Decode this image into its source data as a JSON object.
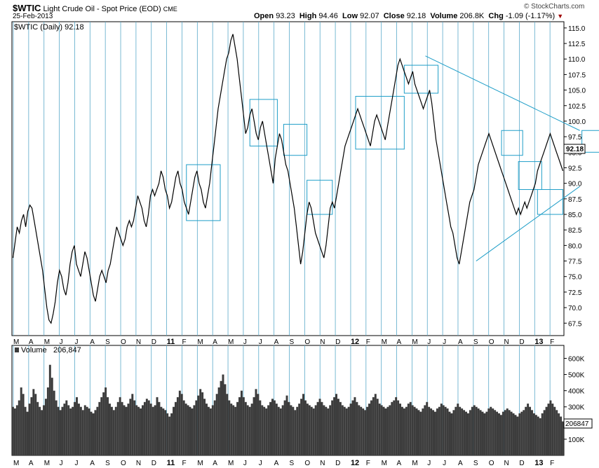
{
  "header": {
    "symbol": "$WTIC",
    "name": "Light Crude Oil - Spot Price (EOD)",
    "exchange": "CME",
    "date": "25-Feb-2013",
    "brand": "© StockCharts.com",
    "quote": {
      "open_label": "Open",
      "open": "93.23",
      "high_label": "High",
      "high": "94.46",
      "low_label": "Low",
      "low": "92.07",
      "close_label": "Close",
      "close": "92.18",
      "volume_label": "Volume",
      "volume": "206.8K",
      "chg_label": "Chg",
      "chg": "-1.09 (-1.17%)"
    }
  },
  "chart_data": [
    {
      "type": "line",
      "legend": "$WTIC (Daily) 92.18",
      "last_value_label": "92.18",
      "ylim": [
        65.5,
        116.0
      ],
      "y_ticks": [
        "115.0",
        "112.5",
        "110.0",
        "107.5",
        "105.0",
        "102.5",
        "100.0",
        "97.5",
        "95.0",
        "92.5",
        "90.0",
        "87.5",
        "85.0",
        "82.5",
        "80.0",
        "77.5",
        "75.0",
        "72.5",
        "70.0",
        "67.5"
      ],
      "x_month_labels": [
        "M",
        "A",
        "M",
        "J",
        "J",
        "A",
        "S",
        "O",
        "N",
        "D",
        "11",
        "F",
        "M",
        "A",
        "M",
        "J",
        "J",
        "A",
        "S",
        "O",
        "N",
        "D",
        "12",
        "F",
        "M",
        "A",
        "M",
        "J",
        "J",
        "A",
        "S",
        "O",
        "N",
        "D",
        "13",
        "F"
      ],
      "x_year_labels": [
        "11",
        "12",
        "13"
      ],
      "month_grid_color": "#5aa9c9",
      "price_color": "#000000",
      "annotation_color": "#1f9ec8",
      "series": [
        {
          "values": [
            78,
            80.5,
            83,
            82,
            84,
            85,
            83,
            85.5,
            86.5,
            86,
            84,
            82,
            80,
            78,
            76,
            73,
            70,
            68,
            67.5,
            69,
            71,
            74,
            76,
            75,
            73,
            72,
            74,
            77,
            79,
            80,
            77,
            76,
            75,
            77,
            79,
            78,
            76,
            74,
            72,
            71,
            73,
            75,
            76,
            75,
            74,
            76,
            77,
            79,
            81,
            83,
            82,
            81,
            80,
            81,
            83,
            84,
            83,
            84,
            86,
            88,
            87,
            86,
            84,
            83,
            85,
            88,
            89,
            88,
            89,
            90,
            92,
            91,
            89,
            88,
            86,
            87,
            89,
            91,
            92,
            90,
            89,
            87,
            86,
            85,
            87,
            89,
            91,
            92,
            90,
            89,
            87,
            86,
            88,
            90,
            93,
            96,
            99,
            102,
            104,
            106,
            108,
            110,
            111,
            113,
            114,
            112,
            110,
            107,
            104,
            101,
            98,
            99,
            101,
            102,
            100,
            98,
            97,
            99,
            100,
            98,
            96,
            94,
            92,
            90,
            94,
            96,
            98,
            97,
            95,
            93,
            92,
            90,
            88,
            86,
            83,
            80,
            77,
            79,
            82,
            85,
            87,
            86,
            84,
            82,
            81,
            80,
            79,
            78,
            80,
            83,
            86,
            87,
            86,
            88,
            90,
            92,
            94,
            96,
            97,
            98,
            99,
            100,
            101,
            102,
            101,
            100,
            99,
            98,
            97,
            96,
            98,
            100,
            101,
            100,
            99,
            98,
            97,
            99,
            101,
            103,
            105,
            107,
            109,
            110,
            109,
            108,
            107,
            106,
            107,
            108,
            106,
            105,
            104,
            103,
            102,
            103,
            104,
            105,
            103,
            100,
            97,
            95,
            93,
            91,
            89,
            87,
            85,
            83,
            82,
            80,
            78,
            77,
            79,
            81,
            83,
            85,
            87,
            88,
            89,
            91,
            93,
            94,
            95,
            96,
            97,
            98,
            97,
            96,
            95,
            94,
            93,
            92,
            91,
            90,
            89,
            88,
            87,
            86,
            85,
            86,
            85,
            86,
            87,
            86,
            87,
            88,
            89,
            90,
            92,
            93,
            94,
            95,
            96,
            97,
            98,
            97,
            96,
            95,
            94,
            93,
            92
          ]
        }
      ],
      "annotations": {
        "upper_trendline": [
          [
            195,
            110.5
          ],
          [
            268,
            98.5
          ]
        ],
        "lower_trendline": [
          [
            219,
            77.5
          ],
          [
            268,
            89.5
          ]
        ],
        "boxes": [
          {
            "x0": 82,
            "x1": 98,
            "y0": 84,
            "y1": 93
          },
          {
            "x0": 112,
            "x1": 125,
            "y0": 96,
            "y1": 103.5
          },
          {
            "x0": 128,
            "x1": 139,
            "y0": 94.5,
            "y1": 99.5
          },
          {
            "x0": 139,
            "x1": 151,
            "y0": 85,
            "y1": 90.5
          },
          {
            "x0": 162,
            "x1": 185,
            "y0": 95.5,
            "y1": 104
          },
          {
            "x0": 185,
            "x1": 201,
            "y0": 104.5,
            "y1": 109
          },
          {
            "x0": 231,
            "x1": 241,
            "y0": 94.5,
            "y1": 98.5
          },
          {
            "x0": 239,
            "x1": 250,
            "y0": 89,
            "y1": 93.5
          },
          {
            "x0": 248,
            "x1": 260,
            "y0": 85,
            "y1": 89
          },
          {
            "x0": 269,
            "x1": 281,
            "y0": 95,
            "y1": 98.5
          }
        ]
      }
    },
    {
      "type": "bar",
      "legend_label": "Volume",
      "legend_value": "206,847",
      "last_value_label": "206847",
      "ylim": [
        0,
        680000
      ],
      "y_ticks": [
        "600K",
        "500K",
        "400K",
        "300K",
        "200K",
        "100K"
      ],
      "bar_color": "#3c3c3c",
      "values": [
        300000,
        290000,
        310000,
        340000,
        420000,
        380000,
        300000,
        270000,
        320000,
        360000,
        410000,
        380000,
        330000,
        300000,
        280000,
        310000,
        350000,
        420000,
        560000,
        480000,
        400000,
        340000,
        300000,
        280000,
        300000,
        320000,
        340000,
        310000,
        290000,
        300000,
        330000,
        360000,
        320000,
        300000,
        280000,
        310000,
        300000,
        290000,
        270000,
        260000,
        280000,
        300000,
        330000,
        360000,
        390000,
        420000,
        360000,
        320000,
        300000,
        280000,
        300000,
        330000,
        360000,
        330000,
        310000,
        300000,
        320000,
        350000,
        380000,
        340000,
        310000,
        300000,
        290000,
        310000,
        330000,
        350000,
        340000,
        320000,
        300000,
        310000,
        360000,
        330000,
        300000,
        290000,
        280000,
        260000,
        240000,
        260000,
        300000,
        330000,
        360000,
        400000,
        380000,
        340000,
        320000,
        310000,
        300000,
        290000,
        310000,
        340000,
        370000,
        410000,
        390000,
        350000,
        320000,
        300000,
        290000,
        310000,
        340000,
        380000,
        420000,
        460000,
        500000,
        440000,
        380000,
        340000,
        320000,
        310000,
        300000,
        330000,
        360000,
        400000,
        360000,
        330000,
        310000,
        300000,
        320000,
        360000,
        410000,
        380000,
        340000,
        310000,
        300000,
        290000,
        310000,
        330000,
        350000,
        340000,
        320000,
        300000,
        290000,
        310000,
        340000,
        370000,
        330000,
        310000,
        300000,
        280000,
        300000,
        320000,
        350000,
        380000,
        340000,
        320000,
        310000,
        300000,
        290000,
        310000,
        330000,
        350000,
        330000,
        310000,
        300000,
        290000,
        310000,
        340000,
        360000,
        380000,
        350000,
        330000,
        310000,
        300000,
        290000,
        300000,
        320000,
        340000,
        360000,
        330000,
        310000,
        300000,
        290000,
        280000,
        300000,
        320000,
        340000,
        360000,
        380000,
        350000,
        320000,
        310000,
        300000,
        290000,
        300000,
        310000,
        330000,
        340000,
        360000,
        340000,
        320000,
        300000,
        290000,
        300000,
        320000,
        330000,
        310000,
        300000,
        290000,
        280000,
        270000,
        290000,
        310000,
        330000,
        300000,
        290000,
        280000,
        270000,
        290000,
        300000,
        320000,
        310000,
        300000,
        290000,
        270000,
        260000,
        280000,
        300000,
        320000,
        300000,
        290000,
        280000,
        270000,
        260000,
        280000,
        300000,
        310000,
        300000,
        290000,
        280000,
        270000,
        260000,
        270000,
        290000,
        300000,
        290000,
        280000,
        270000,
        260000,
        250000,
        270000,
        280000,
        290000,
        280000,
        270000,
        260000,
        250000,
        240000,
        260000,
        270000,
        280000,
        300000,
        320000,
        300000,
        280000,
        260000,
        250000,
        240000,
        230000,
        260000,
        280000,
        300000,
        320000,
        340000,
        320000,
        300000,
        280000,
        260000,
        240000,
        210000
      ]
    }
  ]
}
